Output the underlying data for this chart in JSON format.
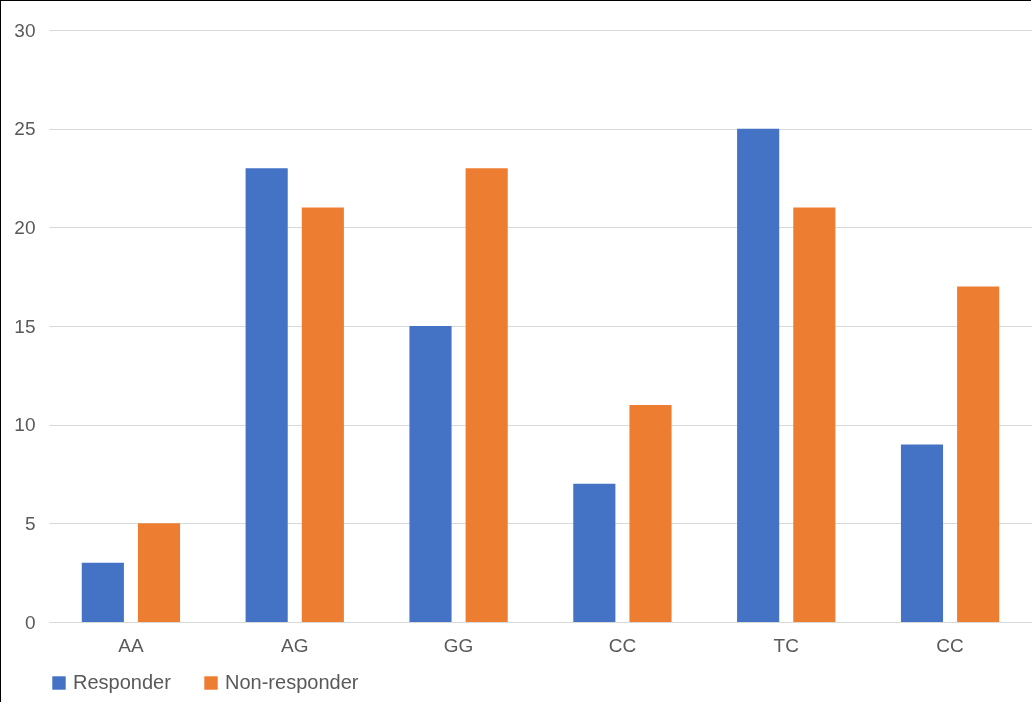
{
  "chart_data": {
    "type": "bar",
    "categories": [
      "AA",
      "AG",
      "GG",
      "CC",
      "TC",
      "CC"
    ],
    "series": [
      {
        "name": "Responder",
        "color": "#4472c4",
        "values": [
          3,
          23,
          15,
          7,
          25,
          9
        ]
      },
      {
        "name": "Non-responder",
        "color": "#ed7d31",
        "values": [
          5,
          21,
          23,
          11,
          21,
          17
        ]
      }
    ],
    "ylim": [
      0,
      30
    ],
    "yticks": [
      0,
      5,
      10,
      15,
      20,
      25,
      30
    ],
    "grid": "y",
    "legend": "bottom"
  }
}
